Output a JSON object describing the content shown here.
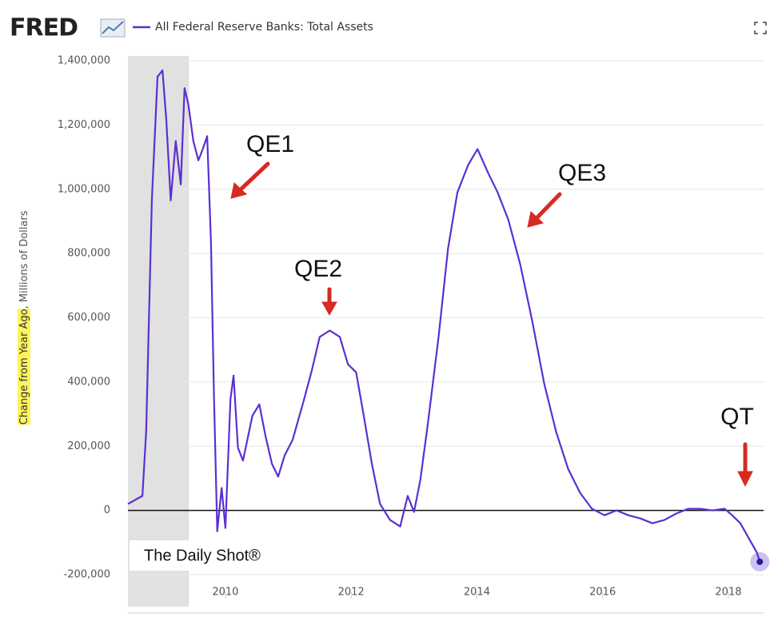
{
  "chart_data": {
    "type": "line",
    "logo": "FRED",
    "ylabel_highlight": "Change from Year Ago",
    "ylabel_rest": ", Millions of Dollars",
    "watermark": "The Daily Shot®",
    "annotations": [
      "QE1",
      "QE2",
      "QE3",
      "QT"
    ],
    "recession": [
      2008.45,
      2009.42
    ],
    "grid": true,
    "xlim": [
      2008.45,
      2018.56
    ],
    "xticks": [
      2010,
      2012,
      2014,
      2016,
      2018
    ],
    "ylim": [
      -200000,
      1400000
    ],
    "yticks": [
      {
        "value": -200000,
        "label": "-200,000"
      },
      0,
      {
        "value": 200000,
        "label": "200,000"
      },
      {
        "value": 400000,
        "label": "400,000"
      },
      {
        "value": 600000,
        "label": "600,000"
      },
      {
        "value": 800000,
        "label": "800,000"
      },
      {
        "value": 1000000,
        "label": "1,000,000"
      },
      {
        "value": 1200000,
        "label": "1,200,000"
      },
      {
        "value": 1400000,
        "label": "1,400,000"
      }
    ],
    "x": [
      2008.45,
      2008.68,
      2008.74,
      2008.83,
      2008.92,
      2009.0,
      2009.06,
      2009.13,
      2009.21,
      2009.29,
      2009.35,
      2009.41,
      2009.49,
      2009.57,
      2009.64,
      2009.71,
      2009.77,
      2009.82,
      2009.87,
      2009.94,
      2010.0,
      2010.08,
      2010.13,
      2010.2,
      2010.28,
      2010.36,
      2010.43,
      2010.54,
      2010.64,
      2010.74,
      2010.84,
      2010.94,
      2011.07,
      2011.25,
      2011.38,
      2011.5,
      2011.66,
      2011.82,
      2011.95,
      2012.08,
      2012.2,
      2012.33,
      2012.46,
      2012.62,
      2012.78,
      2012.9,
      2013.0,
      2013.1,
      2013.22,
      2013.39,
      2013.54,
      2013.69,
      2013.86,
      2014.01,
      2014.18,
      2014.33,
      2014.5,
      2014.69,
      2014.88,
      2015.07,
      2015.26,
      2015.45,
      2015.64,
      2015.83,
      2016.03,
      2016.22,
      2016.41,
      2016.6,
      2016.79,
      2016.98,
      2017.17,
      2017.36,
      2017.55,
      2017.75,
      2017.94,
      2018.06,
      2018.19,
      2018.32,
      2018.45,
      2018.5
    ],
    "series": [
      {
        "name": "All Federal Reserve Banks: Total Assets",
        "color": "#5b2fd4",
        "values": [
          20000,
          45000,
          245000,
          965000,
          1350000,
          1370000,
          1215000,
          965000,
          1150000,
          1015000,
          1315000,
          1265000,
          1150000,
          1090000,
          1125000,
          1165000,
          840000,
          345000,
          -65000,
          70000,
          -55000,
          345000,
          420000,
          195000,
          155000,
          230000,
          295000,
          330000,
          230000,
          145000,
          105000,
          170000,
          220000,
          345000,
          440000,
          540000,
          560000,
          540000,
          455000,
          430000,
          295000,
          145000,
          20000,
          -30000,
          -50000,
          45000,
          -5000,
          95000,
          270000,
          540000,
          815000,
          990000,
          1075000,
          1125000,
          1050000,
          990000,
          905000,
          765000,
          590000,
          395000,
          245000,
          130000,
          55000,
          5000,
          -15000,
          0,
          -15000,
          -25000,
          -40000,
          -30000,
          -10000,
          5000,
          5000,
          0,
          5000,
          -15000,
          -40000,
          -85000,
          -130000,
          -160000
        ]
      }
    ]
  }
}
